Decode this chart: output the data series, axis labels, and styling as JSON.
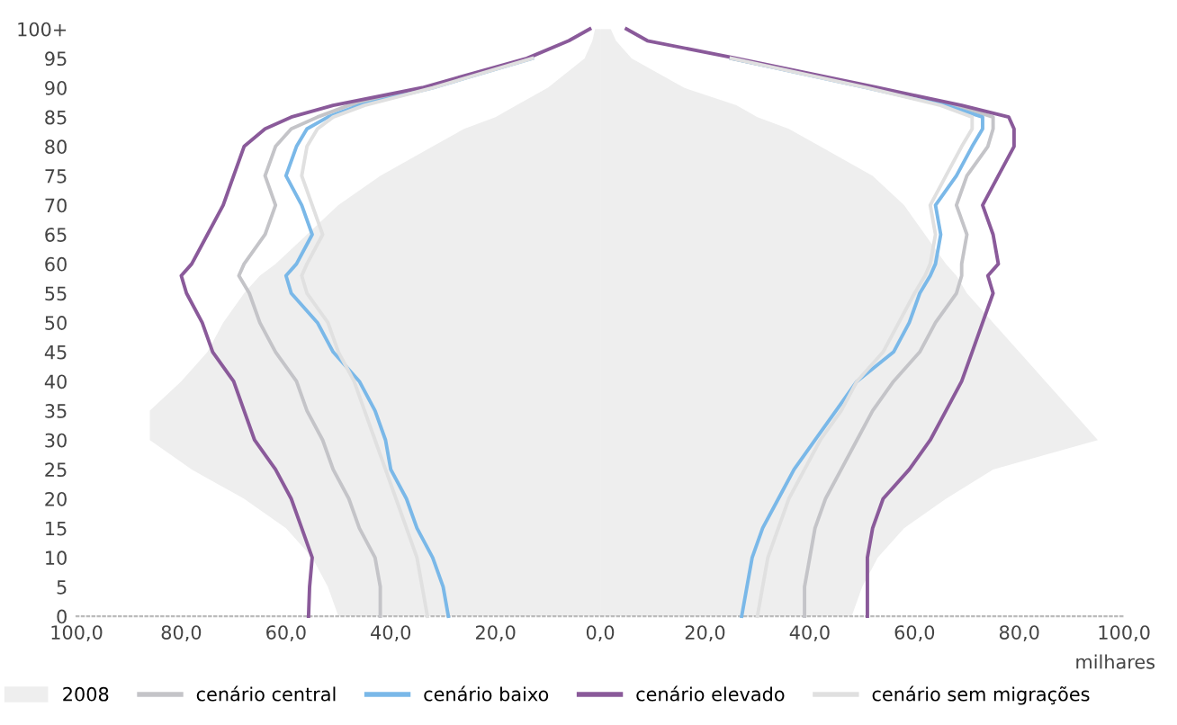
{
  "chart_data": {
    "type": "area",
    "orientation": "horizontal",
    "xlabel": "milhares",
    "legend": "bottom",
    "grid": false,
    "xlim": [
      -100,
      100
    ],
    "xticks": [
      {
        "value": -100,
        "label": "100,0"
      },
      {
        "value": -80,
        "label": "80,0"
      },
      {
        "value": -60,
        "label": "60,0"
      },
      {
        "value": -40,
        "label": "40,0"
      },
      {
        "value": -20,
        "label": "20,0"
      },
      {
        "value": 0,
        "label": "0,0"
      },
      {
        "value": 20,
        "label": "20,0"
      },
      {
        "value": 40,
        "label": "40,0"
      },
      {
        "value": 60,
        "label": "60,0"
      },
      {
        "value": 80,
        "label": "80,0"
      },
      {
        "value": 100,
        "label": "100,0"
      }
    ],
    "ylim": [
      0,
      100
    ],
    "yticks": [
      0,
      5,
      10,
      15,
      20,
      25,
      30,
      35,
      40,
      45,
      50,
      55,
      60,
      65,
      70,
      75,
      80,
      85,
      90,
      95,
      {
        "value": 100,
        "label": "100+"
      }
    ],
    "x": [
      0,
      5,
      10,
      15,
      20,
      25,
      30,
      35,
      40,
      45,
      50,
      55,
      58,
      60,
      65,
      70,
      75,
      80,
      83,
      85,
      87,
      90,
      95,
      98,
      100
    ],
    "series": [
      {
        "name": "2008",
        "color": "#eeeeee",
        "values": [
          -50,
          -52,
          -55,
          -60,
          -68,
          -78,
          -86,
          -86,
          -80,
          -75,
          -72,
          -68,
          -65,
          -62,
          -56,
          -50,
          -42,
          -32,
          -26,
          -20,
          -16,
          -10,
          -3,
          -1.5,
          -1
        ]
      },
      {
        "color": "#eeeeee",
        "values": [
          48,
          50,
          53,
          58,
          66,
          75,
          95,
          90,
          85,
          80,
          75,
          70,
          68,
          66,
          62,
          58,
          52,
          42,
          36,
          30,
          26,
          16,
          6,
          3,
          2
        ]
      },
      {
        "name": "cenário central",
        "type": "line",
        "color": "#c4c4c8",
        "values": [
          -42,
          -42,
          -43,
          -46,
          -48,
          -51,
          -53,
          -56,
          -58,
          -62,
          -65,
          -67,
          -69,
          -68,
          -64,
          -62,
          -64,
          -62,
          -59,
          -54,
          -48,
          -33,
          -13.5,
          null,
          null
        ]
      },
      {
        "type": "line",
        "color": "#c4c4c8",
        "values": [
          39,
          39,
          40,
          41,
          43,
          46,
          49,
          52,
          56,
          61,
          64,
          68,
          69,
          69,
          70,
          68,
          70,
          74,
          75,
          75,
          68,
          52,
          25,
          null,
          null
        ]
      },
      {
        "name": "cenário baixo",
        "type": "line",
        "color": "#7ab8e8",
        "values": [
          -29,
          -30,
          -32,
          -35,
          -37,
          -40,
          -41,
          -43,
          -46,
          -51,
          -54,
          -59,
          -60,
          -58,
          -55,
          -57,
          -60,
          -58,
          -56,
          -52,
          -46,
          -32,
          -13,
          null,
          null
        ]
      },
      {
        "type": "line",
        "color": "#7ab8e8",
        "values": [
          27,
          28,
          29,
          31,
          34,
          37,
          41,
          45,
          49,
          56,
          59,
          61,
          63,
          64,
          65,
          64,
          68,
          71,
          73,
          73,
          66,
          51,
          25,
          null,
          null
        ]
      },
      {
        "name": "cenário elevado",
        "type": "line",
        "color": "#8a5a9a",
        "values": [
          -55.7,
          -55.5,
          -55,
          -57,
          -59,
          -62,
          -66,
          -68,
          -70,
          -74,
          -76,
          -79,
          -80,
          -78,
          -75,
          -72,
          -70,
          -68,
          -64,
          -59,
          -51,
          -34,
          -14,
          -6,
          -2
        ]
      },
      {
        "type": "line",
        "color": "#8a5a9a",
        "values": [
          51,
          51,
          51,
          52,
          54,
          59,
          63,
          66,
          69,
          71,
          73,
          75,
          74,
          76,
          75,
          73,
          76,
          79,
          79,
          78,
          69,
          53,
          26,
          9,
          5
        ]
      },
      {
        "name": "cenário sem migrações",
        "type": "line",
        "color": "#e0e0e0",
        "values": [
          -33,
          -34,
          -35,
          -37,
          -39,
          -41,
          -43,
          -45,
          -47,
          -50,
          -52,
          -56,
          -57,
          -56,
          -53,
          -55,
          -57,
          -56,
          -54,
          -51,
          -45,
          -32,
          -13,
          null,
          null
        ]
      },
      {
        "type": "line",
        "color": "#e0e0e0",
        "values": [
          30,
          31,
          32,
          34,
          36,
          39,
          42,
          46,
          49,
          54,
          57,
          60,
          62,
          63,
          64,
          63,
          66,
          69,
          71,
          71,
          65,
          51,
          25,
          null,
          null
        ]
      }
    ]
  }
}
